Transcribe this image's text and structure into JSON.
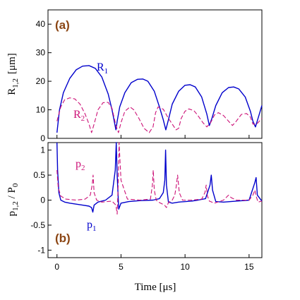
{
  "colors": {
    "r1": "#0000cc",
    "r2": "#cc1177",
    "tag": "#8B4513"
  },
  "chart_data": [
    {
      "type": "line",
      "panel_label": "(a)",
      "ylabel": "R",
      "ylabel_sub": "1,2",
      "ylabel_unit": "[μm]",
      "xlim": [
        -0.7,
        16
      ],
      "ylim": [
        0,
        45
      ],
      "yticks": [
        0,
        10,
        20,
        30,
        40
      ],
      "grid": false,
      "series": [
        {
          "name": "R",
          "name_sub": "1",
          "style": "solid",
          "x": [
            0,
            0.2,
            0.5,
            1,
            1.5,
            2,
            2.5,
            3,
            3.5,
            4,
            4.3,
            4.6,
            4.7,
            4.9,
            5.3,
            5.8,
            6.3,
            6.7,
            7.1,
            7.6,
            8,
            8.3,
            8.5,
            8.7,
            9,
            9.5,
            10,
            10.4,
            10.8,
            11.3,
            11.7,
            11.9,
            12.1,
            12.4,
            12.9,
            13.4,
            13.8,
            14.2,
            14.7,
            15.1,
            15.3,
            15.5,
            15.8,
            16
          ],
          "y": [
            2,
            10,
            16,
            21,
            24,
            25.3,
            25.5,
            24.5,
            21.5,
            15.5,
            10,
            3,
            6,
            11,
            16,
            19.5,
            20.7,
            20.8,
            20,
            16.5,
            11,
            6.5,
            3,
            6.5,
            12,
            16.5,
            18.6,
            18.8,
            18,
            14.5,
            8.5,
            4.5,
            7,
            11.5,
            16,
            17.8,
            18,
            17.3,
            14.5,
            9.5,
            6,
            4,
            8.5,
            11.5
          ]
        },
        {
          "name": "R",
          "name_sub": "2",
          "style": "dashed",
          "x": [
            0,
            0.3,
            0.6,
            1,
            1.4,
            1.8,
            2.2,
            2.5,
            2.7,
            2.9,
            3.2,
            3.6,
            4,
            4.3,
            4.6,
            4.8,
            5,
            5.3,
            5.7,
            6,
            6.4,
            6.8,
            7.2,
            7.5,
            7.7,
            7.9,
            8.3,
            8.7,
            9,
            9.3,
            9.5,
            9.7,
            10,
            10.3,
            10.7,
            11,
            11.4,
            11.7,
            12,
            12.3,
            12.6,
            13,
            13.4,
            13.7,
            14,
            14.4,
            14.8,
            15.1,
            15.3,
            15.6,
            16
          ],
          "y": [
            6,
            11,
            13.5,
            14.2,
            13.8,
            12,
            8.5,
            5,
            2,
            5,
            10,
            12.5,
            12.6,
            10.5,
            4.5,
            2,
            5.5,
            9.5,
            11,
            10,
            7,
            3.5,
            2,
            4,
            9,
            11,
            10.2,
            7,
            5,
            3,
            3.5,
            7,
            9.5,
            10.3,
            9.7,
            8,
            5.5,
            4,
            5.5,
            8.2,
            9,
            8,
            6,
            4.5,
            6,
            8.4,
            8.7,
            7.5,
            5,
            5,
            7
          ]
        }
      ]
    },
    {
      "type": "line",
      "panel_label": "(b)",
      "ylabel": "p",
      "ylabel_sub": "1,2",
      "ylabel_mid": " / P",
      "ylabel_sub2": "0",
      "xlabel": "Time  [μs]",
      "xlim": [
        -0.7,
        16
      ],
      "ylim": [
        -1.15,
        1.15
      ],
      "xticks": [
        0,
        5,
        10,
        15
      ],
      "yticks": [
        -1,
        -0.5,
        0,
        0.5,
        1
      ],
      "ytick_labels": [
        "-1",
        "-0.5",
        "0",
        "0.5",
        "1"
      ],
      "grid": false,
      "series": [
        {
          "name": "p",
          "name_sub": "1",
          "style": "solid",
          "x": [
            0,
            0.05,
            0.15,
            0.3,
            0.6,
            1,
            1.5,
            2,
            2.5,
            2.7,
            2.8,
            2.9,
            3.2,
            3.8,
            4.3,
            4.55,
            4.63,
            4.7,
            4.82,
            5,
            5.6,
            6.5,
            7.5,
            8,
            8.3,
            8.42,
            8.48,
            8.55,
            8.7,
            9,
            9.5,
            10.5,
            11,
            11.6,
            11.95,
            12.05,
            12.15,
            12.4,
            13,
            14,
            15,
            15.45,
            15.55,
            15.65,
            16
          ],
          "y": [
            1.15,
            0.6,
            0.15,
            0.0,
            -0.04,
            -0.06,
            -0.08,
            -0.1,
            -0.12,
            -0.15,
            -0.24,
            -0.1,
            -0.04,
            0.0,
            0.1,
            0.6,
            1.15,
            0.5,
            -0.18,
            -0.06,
            -0.03,
            -0.01,
            0.0,
            0.03,
            0.15,
            0.4,
            1.0,
            0.3,
            -0.04,
            -0.06,
            -0.04,
            -0.02,
            0.0,
            0.03,
            0.3,
            0.5,
            0.2,
            -0.03,
            -0.04,
            -0.02,
            0.0,
            0.35,
            0.45,
            0.1,
            -0.02
          ]
        },
        {
          "name": "p",
          "name_sub": "2",
          "style": "dashed",
          "x": [
            0,
            0.1,
            0.3,
            0.7,
            1.5,
            2.2,
            2.6,
            2.75,
            2.82,
            2.9,
            3.1,
            3.5,
            4.3,
            4.6,
            4.7,
            4.78,
            4.85,
            5,
            5.5,
            6.5,
            7.3,
            7.45,
            7.52,
            7.6,
            7.75,
            8,
            8.4,
            8.55,
            8.7,
            9,
            9.2,
            9.3,
            9.42,
            9.55,
            9.8,
            10.5,
            11.3,
            11.55,
            11.65,
            11.75,
            11.9,
            12.3,
            13,
            13.2,
            13.4,
            13.6,
            14,
            15,
            15.3,
            15.45,
            15.55,
            15.7,
            16
          ],
          "y": [
            0.6,
            0.25,
            0.08,
            0.02,
            0.0,
            0.02,
            0.1,
            0.3,
            0.5,
            0.15,
            0.0,
            -0.04,
            -0.02,
            -0.1,
            -0.28,
            0.3,
            1.15,
            0.4,
            0.02,
            0.0,
            0.02,
            0.3,
            0.6,
            0.2,
            0.0,
            -0.05,
            -0.1,
            -0.15,
            -0.05,
            0.0,
            0.1,
            0.25,
            0.5,
            0.15,
            0.0,
            0.0,
            0.02,
            0.15,
            0.3,
            0.08,
            -0.02,
            -0.06,
            0.0,
            0.05,
            0.1,
            0.05,
            0.0,
            0.0,
            0.1,
            0.2,
            0.08,
            -0.04,
            -0.02
          ]
        }
      ]
    }
  ]
}
